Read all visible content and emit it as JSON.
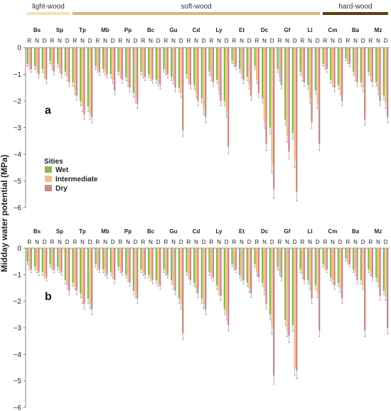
{
  "chart_data": [
    {
      "type": "bar",
      "panel_label": "a",
      "ylabel": "Midday water potential (MPa)",
      "ylim": [
        -6,
        0
      ],
      "yticks": [
        0,
        -1,
        -2,
        -3,
        -4,
        -5,
        -6
      ],
      "groups": [
        {
          "label": "light-wood",
          "color": "#ece3c2",
          "species": [
            "Bs",
            "Sp"
          ]
        },
        {
          "label": "soft-wood",
          "color": "#cfb888",
          "species": [
            "Tp",
            "Mb",
            "Pp",
            "Bc",
            "Gu",
            "Cd",
            "Ly",
            "Et",
            "Dc",
            "Gf",
            "Ll"
          ]
        },
        {
          "label": "hard-wood",
          "color": "#5a3d17",
          "species": [
            "Cm",
            "Ba",
            "Mz"
          ]
        }
      ],
      "species": [
        "Bs",
        "Sp",
        "Tp",
        "Mb",
        "Pp",
        "Bc",
        "Gu",
        "Cd",
        "Ly",
        "Et",
        "Dc",
        "Gf",
        "Ll",
        "Cm",
        "Ba",
        "Mz"
      ],
      "seasons": [
        "R",
        "N",
        "D"
      ],
      "legend": {
        "title": "Sities",
        "position": "left",
        "items": [
          "Wet",
          "Intermediate",
          "Dry"
        ]
      },
      "series": [
        {
          "name": "Wet",
          "color": "#8db84a",
          "values": [
            [
              -0.6,
              -0.7,
              -0.8
            ],
            [
              -0.5,
              -0.6,
              -0.9
            ],
            [
              -1.3,
              -2.0,
              -2.2
            ],
            [
              -0.7,
              -0.8,
              -1.0
            ],
            [
              -0.9,
              -1.1,
              -1.7
            ],
            [
              -0.9,
              -1.0,
              -1.2
            ],
            [
              -0.8,
              -1.1,
              -1.5
            ],
            [
              -1.0,
              -1.4,
              -1.9
            ],
            [
              -0.9,
              -1.2,
              -2.0
            ],
            [
              -0.5,
              -0.8,
              -1.1
            ],
            [
              -0.7,
              -1.9,
              -3.0
            ],
            [
              -0.8,
              -2.7,
              -3.2
            ],
            [
              -0.9,
              -1.4,
              -1.6
            ],
            [
              -0.6,
              -1.2,
              -1.4
            ],
            [
              -0.4,
              -0.9,
              -1.3
            ],
            [
              -0.9,
              -1.3,
              -1.8
            ]
          ]
        },
        {
          "name": "Intermediate",
          "color": "#f0be8f",
          "values": [
            [
              -0.7,
              -0.8,
              -1.0
            ],
            [
              -0.7,
              -0.8,
              -1.1
            ],
            [
              -1.6,
              -2.2,
              -2.5
            ],
            [
              -0.8,
              -0.9,
              -1.2
            ],
            [
              -1.0,
              -1.3,
              -1.9
            ],
            [
              -1.0,
              -1.1,
              -1.3
            ],
            [
              -0.9,
              -1.2,
              -1.7
            ],
            [
              -1.2,
              -1.7,
              -2.3
            ],
            [
              -1.1,
              -1.6,
              -2.4
            ],
            [
              -0.6,
              -1.0,
              -1.4
            ],
            [
              -1.2,
              -2.8,
              -4.4
            ],
            [
              -1.1,
              -3.3,
              -4.2
            ],
            [
              -1.1,
              -1.9,
              -2.1
            ],
            [
              -0.7,
              -1.3,
              -1.6
            ],
            [
              -0.5,
              -1.1,
              -1.5
            ],
            [
              -1.1,
              -1.6,
              -2.1
            ]
          ]
        },
        {
          "name": "Dry",
          "color": "#c88b85",
          "values": [
            [
              -0.8,
              -1.0,
              -1.2
            ],
            [
              -0.9,
              -1.0,
              -1.3
            ],
            [
              -1.8,
              -2.5,
              -2.6
            ],
            [
              -0.9,
              -1.0,
              -1.6
            ],
            [
              -1.2,
              -1.5,
              -2.1
            ],
            [
              -1.1,
              -1.2,
              -1.4
            ],
            [
              -1.0,
              -1.5,
              -3.1
            ],
            [
              -1.4,
              -2.0,
              -2.6
            ],
            [
              -1.3,
              -2.0,
              -3.7
            ],
            [
              -0.7,
              -1.2,
              -1.8
            ],
            [
              -1.7,
              -3.6,
              -5.3
            ],
            [
              -1.4,
              -3.9,
              -5.4
            ],
            [
              -1.3,
              -2.8,
              -3.6
            ],
            [
              -0.8,
              -1.5,
              -2.0
            ],
            [
              -0.6,
              -1.3,
              -2.7
            ],
            [
              -1.3,
              -2.0,
              -2.6
            ]
          ]
        }
      ]
    },
    {
      "type": "bar",
      "panel_label": "b",
      "ylabel": "Midday water potential (MPa)",
      "ylim": [
        -6,
        0
      ],
      "yticks": [
        0,
        -1,
        -2,
        -3,
        -4,
        -5,
        -6
      ],
      "species": [
        "Bs",
        "Sp",
        "Tp",
        "Mb",
        "Pp",
        "Bc",
        "Gu",
        "Cd",
        "Ly",
        "Et",
        "Dc",
        "Gf",
        "Ll",
        "Cm",
        "Ba",
        "Mz"
      ],
      "seasons": [
        "R",
        "N",
        "D"
      ],
      "series": [
        {
          "name": "Wet",
          "color": "#8db84a",
          "values": [
            [
              -0.5,
              -0.7,
              -0.9
            ],
            [
              -0.6,
              -0.7,
              -1.2
            ],
            [
              -1.3,
              -1.7,
              -1.9
            ],
            [
              -0.6,
              -0.8,
              -0.9
            ],
            [
              -0.7,
              -1.0,
              -1.6
            ],
            [
              -0.8,
              -1.0,
              -1.2
            ],
            [
              -0.8,
              -1.2,
              -1.9
            ],
            [
              -0.9,
              -1.3,
              -1.9
            ],
            [
              -0.9,
              -1.4,
              -2.3
            ],
            [
              -0.6,
              -1.0,
              -1.3
            ],
            [
              -0.6,
              -1.3,
              -2.5
            ],
            [
              -0.7,
              -2.7,
              -2.9
            ],
            [
              -0.8,
              -1.2,
              -1.4
            ],
            [
              -0.6,
              -1.1,
              -1.3
            ],
            [
              -0.4,
              -0.8,
              -1.2
            ],
            [
              -0.8,
              -1.1,
              -1.6
            ]
          ]
        },
        {
          "name": "Intermediate",
          "color": "#f0be8f",
          "values": [
            [
              -0.7,
              -0.8,
              -1.0
            ],
            [
              -0.7,
              -0.8,
              -1.4
            ],
            [
              -1.4,
              -1.9,
              -2.1
            ],
            [
              -0.7,
              -0.9,
              -1.0
            ],
            [
              -0.8,
              -1.1,
              -1.7
            ],
            [
              -0.9,
              -1.1,
              -1.3
            ],
            [
              -0.9,
              -1.4,
              -2.1
            ],
            [
              -1.0,
              -1.5,
              -2.1
            ],
            [
              -1.0,
              -1.6,
              -2.5
            ],
            [
              -0.7,
              -1.1,
              -1.5
            ],
            [
              -0.9,
              -1.6,
              -3.0
            ],
            [
              -0.9,
              -3.1,
              -4.5
            ],
            [
              -1.0,
              -1.4,
              -1.7
            ],
            [
              -0.7,
              -1.2,
              -1.5
            ],
            [
              -0.5,
              -0.9,
              -1.4
            ],
            [
              -0.9,
              -1.3,
              -1.8
            ]
          ]
        },
        {
          "name": "Dry",
          "color": "#c88b85",
          "values": [
            [
              -0.8,
              -0.9,
              -1.1
            ],
            [
              -0.8,
              -0.9,
              -1.6
            ],
            [
              -1.6,
              -2.1,
              -2.3
            ],
            [
              -0.8,
              -1.0,
              -1.2
            ],
            [
              -0.9,
              -1.3,
              -1.9
            ],
            [
              -1.0,
              -1.2,
              -1.4
            ],
            [
              -1.0,
              -1.6,
              -3.2
            ],
            [
              -1.2,
              -1.7,
              -2.3
            ],
            [
              -1.1,
              -1.8,
              -2.9
            ],
            [
              -0.8,
              -1.2,
              -1.7
            ],
            [
              -1.1,
              -2.1,
              -4.8
            ],
            [
              -1.1,
              -3.3,
              -4.6
            ],
            [
              -1.2,
              -1.9,
              -3.1
            ],
            [
              -0.8,
              -1.4,
              -1.9
            ],
            [
              -0.6,
              -1.2,
              -3.1
            ],
            [
              -1.1,
              -1.8,
              -3.0
            ]
          ]
        }
      ]
    }
  ]
}
